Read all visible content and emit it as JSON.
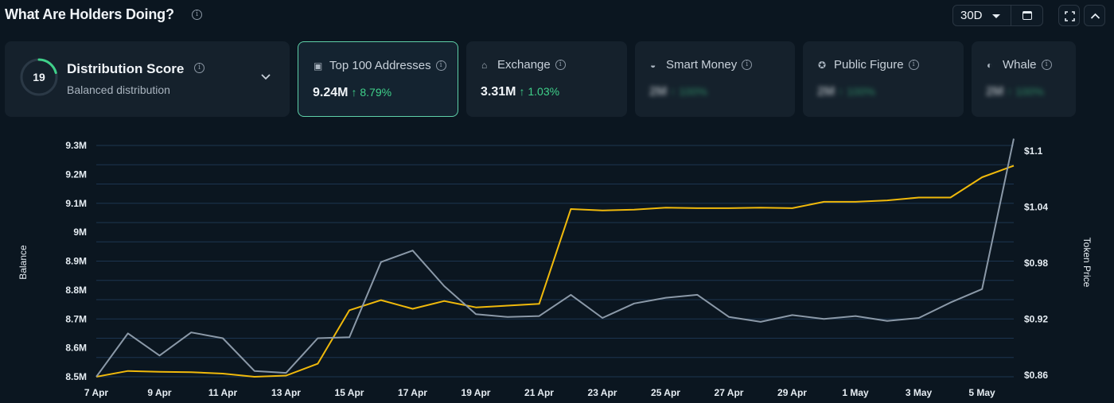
{
  "header": {
    "title": "What Are Holders Doing?",
    "range_label": "30D"
  },
  "distribution": {
    "score": "19",
    "title": "Distribution Score",
    "subtitle": "Balanced distribution"
  },
  "cards": [
    {
      "label": "Top 100 Addresses",
      "value": "9.24M",
      "change": "↑ 8.79%",
      "selected": true,
      "icon": "wallet-icon"
    },
    {
      "label": "Exchange",
      "value": "3.31M",
      "change": "↑ 1.03%",
      "selected": false,
      "icon": "bank-icon"
    },
    {
      "label": "Smart Money",
      "value": "2M",
      "change": "↑ 100%",
      "selected": false,
      "icon": "mask-icon",
      "blurred": true
    },
    {
      "label": "Public Figure",
      "value": "2M",
      "change": "↑ 100%",
      "selected": false,
      "icon": "person-icon",
      "blurred": true
    },
    {
      "label": "Whale",
      "value": "2M",
      "change": "↑ 100%",
      "selected": false,
      "icon": "whale-icon",
      "blurred": true
    }
  ],
  "colors": {
    "balance_line": "#f0b90b",
    "price_line": "#8b99a8",
    "up": "#3fd18a",
    "accent": "#5fd1a9"
  },
  "chart_data": {
    "type": "line",
    "ylabel": "Balance",
    "y2label": "Token Price",
    "y_ticks": [
      "9.3M",
      "9.2M",
      "9.1M",
      "9M",
      "8.9M",
      "8.8M",
      "8.7M",
      "8.6M",
      "8.5M"
    ],
    "y2_ticks": [
      "$1.1",
      "$1.04",
      "$0.98",
      "$0.92",
      "$0.86"
    ],
    "x_ticks": [
      "7 Apr",
      "9 Apr",
      "11 Apr",
      "13 Apr",
      "15 Apr",
      "17 Apr",
      "19 Apr",
      "21 Apr",
      "23 Apr",
      "25 Apr",
      "27 Apr",
      "29 Apr",
      "1 May",
      "3 May",
      "5 May"
    ],
    "ylim": [
      8.5,
      9.3
    ],
    "y2lim": [
      0.86,
      1.1
    ],
    "grid": true,
    "series": [
      {
        "name": "Balance",
        "axis": "left",
        "values": [
          8.5,
          8.52,
          8.517,
          8.516,
          8.511,
          8.5,
          8.504,
          8.545,
          8.73,
          8.765,
          8.735,
          8.762,
          8.74,
          8.746,
          8.752,
          9.08,
          9.075,
          9.078,
          9.085,
          9.083,
          9.083,
          9.085,
          9.083,
          9.105,
          9.105,
          9.11,
          9.12,
          9.12,
          9.19,
          9.23
        ]
      },
      {
        "name": "Token Price",
        "axis": "right",
        "values": [
          0.86,
          0.905,
          0.882,
          0.906,
          0.9,
          0.866,
          0.864,
          0.9,
          0.901,
          0.979,
          0.991,
          0.954,
          0.925,
          0.922,
          0.923,
          0.945,
          0.921,
          0.936,
          0.942,
          0.945,
          0.922,
          0.917,
          0.924,
          0.92,
          0.923,
          0.918,
          0.921,
          0.937,
          0.951,
          1.107
        ]
      }
    ]
  }
}
